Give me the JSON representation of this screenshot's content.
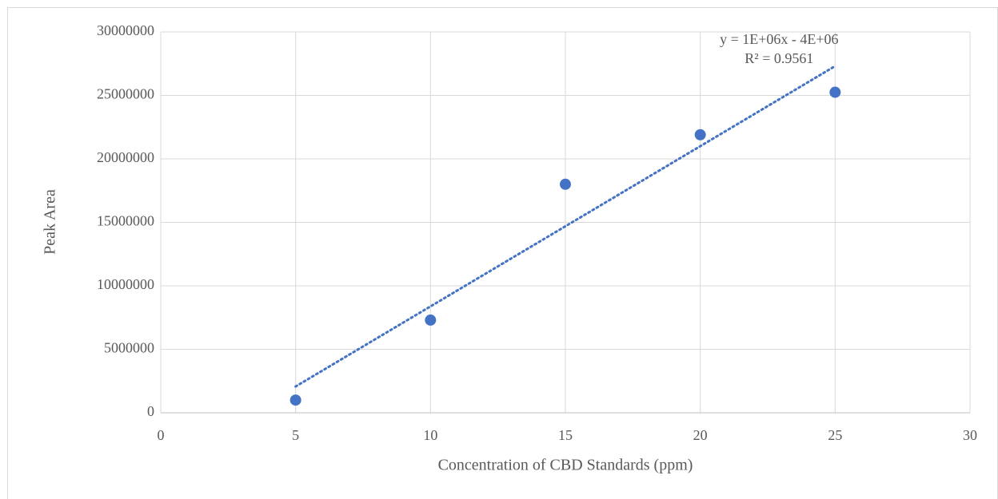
{
  "chart_data": {
    "type": "scatter",
    "x_label": "Concentration of CBD Standards (ppm)",
    "y_label": "Peak Area",
    "series": [
      {
        "color": "#4472c4",
        "x": [
          5,
          10,
          15,
          20,
          25
        ],
        "values": [
          1000000,
          7300000,
          18000000,
          21900000,
          25250000
        ]
      }
    ],
    "xlim": [
      0,
      30
    ],
    "xticks": [
      0,
      5,
      10,
      15,
      20,
      25,
      30
    ],
    "ylim": [
      0,
      30000000
    ],
    "yticks": [
      0,
      5000000,
      10000000,
      15000000,
      20000000,
      25000000,
      30000000
    ],
    "grid": true,
    "trendline": {
      "type": "linear",
      "style": "dotted",
      "equation": "y = 1E+06x - 4E+06",
      "r_squared": "R² = 0.9561"
    }
  }
}
